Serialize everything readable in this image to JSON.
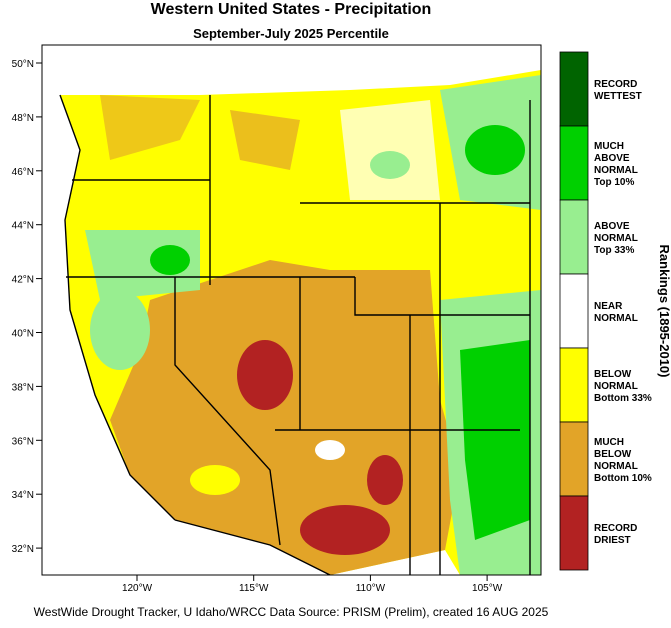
{
  "header": {
    "title": "Western United States - Precipitation",
    "subtitle": "September-July 2025 Percentile"
  },
  "map": {
    "lat_labels": [
      "50°N",
      "48°N",
      "46°N",
      "44°N",
      "42°N",
      "40°N",
      "38°N",
      "36°N",
      "34°N",
      "32°N"
    ],
    "lon_labels": [
      "120°W",
      "115°W",
      "110°W",
      "105°W"
    ]
  },
  "legend": {
    "title": "Rankings (1895-2010)",
    "items": [
      {
        "lines": [
          "RECORD",
          "WETTEST"
        ],
        "color": "#006400"
      },
      {
        "lines": [
          "MUCH",
          "ABOVE",
          "NORMAL",
          "Top 10%"
        ],
        "color": "#00d000"
      },
      {
        "lines": [
          "ABOVE",
          "NORMAL",
          "Top 33%"
        ],
        "color": "#98ee90"
      },
      {
        "lines": [
          "NEAR",
          "NORMAL"
        ],
        "color": "#ffffff"
      },
      {
        "lines": [
          "BELOW",
          "NORMAL",
          "Bottom 33%"
        ],
        "color": "#ffff00"
      },
      {
        "lines": [
          "MUCH",
          "BELOW",
          "NORMAL",
          "Bottom 10%"
        ],
        "color": "#e2a428"
      },
      {
        "lines": [
          "RECORD",
          "DRIEST"
        ],
        "color": "#b22222"
      }
    ]
  },
  "footer": "WestWide Drought Tracker, U Idaho/WRCC Data Source: PRISM (Prelim), created 16 AUG 2025"
}
